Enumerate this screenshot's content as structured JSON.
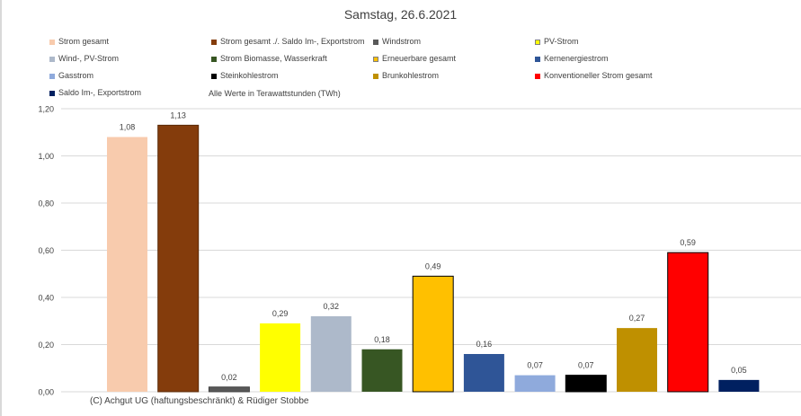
{
  "chart_data": {
    "type": "bar",
    "title": "Samstag, 26.6.2021",
    "note": "Alle Werte in Terawattstunden (TWh)",
    "footer": "(C) Achgut UG (haftungsbeschränkt) & Rüdiger Stobbe",
    "ylim": [
      0,
      1.2
    ],
    "ytick_step": 0.2,
    "grid": true,
    "legend_position": "top",
    "categories": [
      "Strom gesamt",
      "Strom gesamt ./. Saldo Im-, Exportstrom",
      "Windstrom",
      "PV-Strom",
      "Wind-, PV-Strom",
      "Strom Biomasse, Wasserkraft",
      "Erneuerbare gesamt",
      "Kernenergiestrom",
      "Gasstrom",
      "Steinkohlestrom",
      "Brunkohlestrom",
      "Konventioneller Strom gesamt",
      "Saldo Im-, Exportstrom"
    ],
    "values": [
      1.08,
      1.13,
      0.02,
      0.29,
      0.32,
      0.18,
      0.49,
      0.16,
      0.07,
      0.07,
      0.27,
      0.59,
      0.05
    ],
    "labels": [
      "1,08",
      "1,13",
      "0,02",
      "0,29",
      "0,32",
      "0,18",
      "0,49",
      "0,16",
      "0,07",
      "0,07",
      "0,27",
      "0,59",
      "0,05"
    ],
    "colors": [
      "#F8CBAD",
      "#843C0C",
      "#595959",
      "#FFFF00",
      "#ADB9CA",
      "#375623",
      "#FFC000",
      "#2F5597",
      "#8FAADC",
      "#000000",
      "#BF9000",
      "#FF0000",
      "#002060"
    ],
    "edge_colors": [
      "none",
      "#5a2906",
      "#404040",
      "none",
      "none",
      "none",
      "#000000",
      "none",
      "none",
      "#000000",
      "none",
      "#000000",
      "none"
    ],
    "y_tick_labels": [
      "0,00",
      "0,20",
      "0,40",
      "0,60",
      "0,80",
      "1,00",
      "1,20"
    ]
  },
  "legend": {
    "items": [
      {
        "label": "Strom gesamt",
        "color": "#F8CBAD"
      },
      {
        "label": "Strom gesamt ./. Saldo Im-, Exportstrom",
        "color": "#843C0C"
      },
      {
        "label": "Windstrom",
        "color": "#595959"
      },
      {
        "label": "PV-Strom",
        "color": "#FFFF00"
      },
      {
        "label": "Wind-, PV-Strom",
        "color": "#ADB9CA"
      },
      {
        "label": "Strom Biomasse, Wasserkraft",
        "color": "#375623"
      },
      {
        "label": "Erneuerbare gesamt",
        "color": "#FFC000"
      },
      {
        "label": "Kernenergiestrom",
        "color": "#2F5597"
      },
      {
        "label": "Gasstrom",
        "color": "#8FAADC"
      },
      {
        "label": "Steinkohlestrom",
        "color": "#000000"
      },
      {
        "label": "Brunkohlestrom",
        "color": "#BF9000"
      },
      {
        "label": "Konventioneller Strom gesamt",
        "color": "#FF0000"
      },
      {
        "label": "Saldo Im-, Exportstrom",
        "color": "#002060"
      }
    ]
  }
}
